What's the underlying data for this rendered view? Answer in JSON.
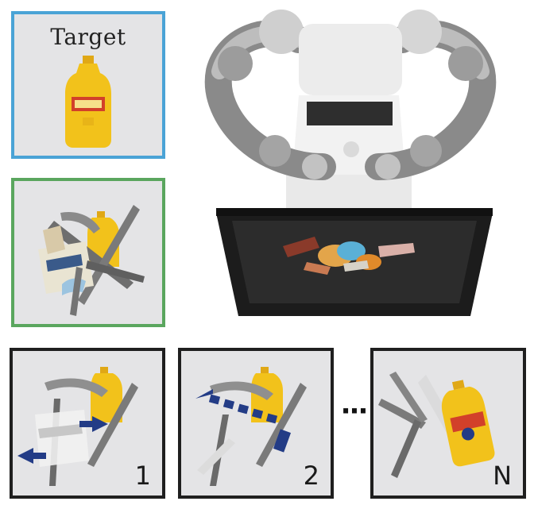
{
  "panels": {
    "target": {
      "title": "Target",
      "border_color": "#4aa3d6"
    },
    "observation": {
      "border_color": "#5aa65e"
    },
    "steps": [
      {
        "label": "1"
      },
      {
        "label": "2"
      },
      {
        "label": "N"
      }
    ],
    "ellipsis": "···"
  },
  "colors": {
    "mustard": "#f2c21b",
    "mustard_label": "#d2402a",
    "arrow": "#233c86",
    "tray": "#1c1c1c",
    "robot": "#8a8a8a"
  },
  "icons": [
    "mustard-bottle-icon",
    "clamp-icon",
    "robot-icon",
    "tray-icon",
    "arrow-icon"
  ]
}
